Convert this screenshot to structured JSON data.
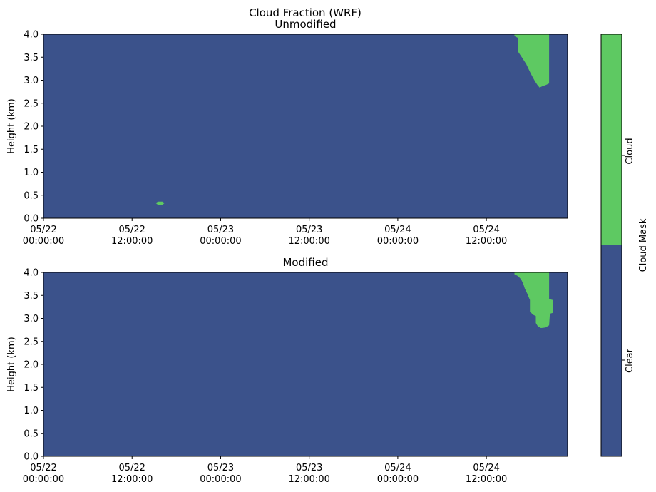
{
  "figure": {
    "suptitle": "Cloud Fraction (WRF)"
  },
  "colorbar": {
    "label": "Cloud Mask",
    "ticks": [
      "Clear",
      "Cloud"
    ],
    "colors": [
      "#3b528b",
      "#5ec962"
    ]
  },
  "chart_data": [
    {
      "type": "heatmap",
      "title": "Unmodified",
      "ylabel": "Height (km)",
      "ylim": [
        0.0,
        4.0
      ],
      "yticks": [
        "0.0",
        "0.5",
        "1.0",
        "1.5",
        "2.0",
        "2.5",
        "3.0",
        "3.5",
        "4.0"
      ],
      "xlim": [
        "05/22 00:00:00",
        "05/24 23:00:00"
      ],
      "xticks": [
        {
          "date": "05/22",
          "time": "00:00:00",
          "hours": 0
        },
        {
          "date": "05/22",
          "time": "12:00:00",
          "hours": 12
        },
        {
          "date": "05/23",
          "time": "00:00:00",
          "hours": 24
        },
        {
          "date": "05/23",
          "time": "12:00:00",
          "hours": 36
        },
        {
          "date": "05/24",
          "time": "00:00:00",
          "hours": 48
        },
        {
          "date": "05/24",
          "time": "12:00:00",
          "hours": 60
        }
      ],
      "xmax_hours": 71,
      "background_class": "Clear",
      "cloud_regions": [
        {
          "class": "Cloud",
          "polygon_hours_km": [
            [
              63.8,
              4.0
            ],
            [
              68.5,
              4.0
            ],
            [
              68.5,
              2.93
            ],
            [
              68.1,
              2.9
            ],
            [
              67.6,
              2.87
            ],
            [
              67.2,
              2.84
            ],
            [
              66.9,
              2.9
            ],
            [
              66.6,
              2.97
            ],
            [
              66.3,
              3.06
            ],
            [
              66.0,
              3.15
            ],
            [
              65.7,
              3.25
            ],
            [
              65.4,
              3.35
            ],
            [
              64.8,
              3.5
            ],
            [
              64.3,
              3.62
            ],
            [
              64.3,
              3.92
            ],
            [
              63.8,
              3.96
            ]
          ]
        },
        {
          "class": "Cloud",
          "polygon_hours_km": [
            [
              15.2,
              0.33
            ],
            [
              15.5,
              0.36
            ],
            [
              16.1,
              0.36
            ],
            [
              16.4,
              0.33
            ],
            [
              16.1,
              0.29
            ],
            [
              15.5,
              0.29
            ]
          ]
        }
      ]
    },
    {
      "type": "heatmap",
      "title": "Modified",
      "ylabel": "Height (km)",
      "ylim": [
        0.0,
        4.0
      ],
      "yticks": [
        "0.0",
        "0.5",
        "1.0",
        "1.5",
        "2.0",
        "2.5",
        "3.0",
        "3.5",
        "4.0"
      ],
      "xlim": [
        "05/22 00:00:00",
        "05/24 23:00:00"
      ],
      "xticks": [
        {
          "date": "05/22",
          "time": "00:00:00",
          "hours": 0
        },
        {
          "date": "05/22",
          "time": "12:00:00",
          "hours": 12
        },
        {
          "date": "05/23",
          "time": "00:00:00",
          "hours": 24
        },
        {
          "date": "05/23",
          "time": "12:00:00",
          "hours": 36
        },
        {
          "date": "05/24",
          "time": "00:00:00",
          "hours": 48
        },
        {
          "date": "05/24",
          "time": "12:00:00",
          "hours": 60
        }
      ],
      "xmax_hours": 71,
      "background_class": "Clear",
      "cloud_regions": [
        {
          "class": "Cloud",
          "polygon_hours_km": [
            [
              63.8,
              4.0
            ],
            [
              68.5,
              4.0
            ],
            [
              68.5,
              3.42
            ],
            [
              69.0,
              3.4
            ],
            [
              69.0,
              3.12
            ],
            [
              68.6,
              3.1
            ],
            [
              68.5,
              2.85
            ],
            [
              68.0,
              2.8
            ],
            [
              67.4,
              2.79
            ],
            [
              67.0,
              2.82
            ],
            [
              66.7,
              2.9
            ],
            [
              66.7,
              3.05
            ],
            [
              66.3,
              3.08
            ],
            [
              65.9,
              3.15
            ],
            [
              65.9,
              3.4
            ],
            [
              65.5,
              3.55
            ],
            [
              65.2,
              3.65
            ],
            [
              65.0,
              3.75
            ],
            [
              64.7,
              3.85
            ],
            [
              64.3,
              3.92
            ],
            [
              63.8,
              3.96
            ]
          ]
        }
      ]
    }
  ]
}
